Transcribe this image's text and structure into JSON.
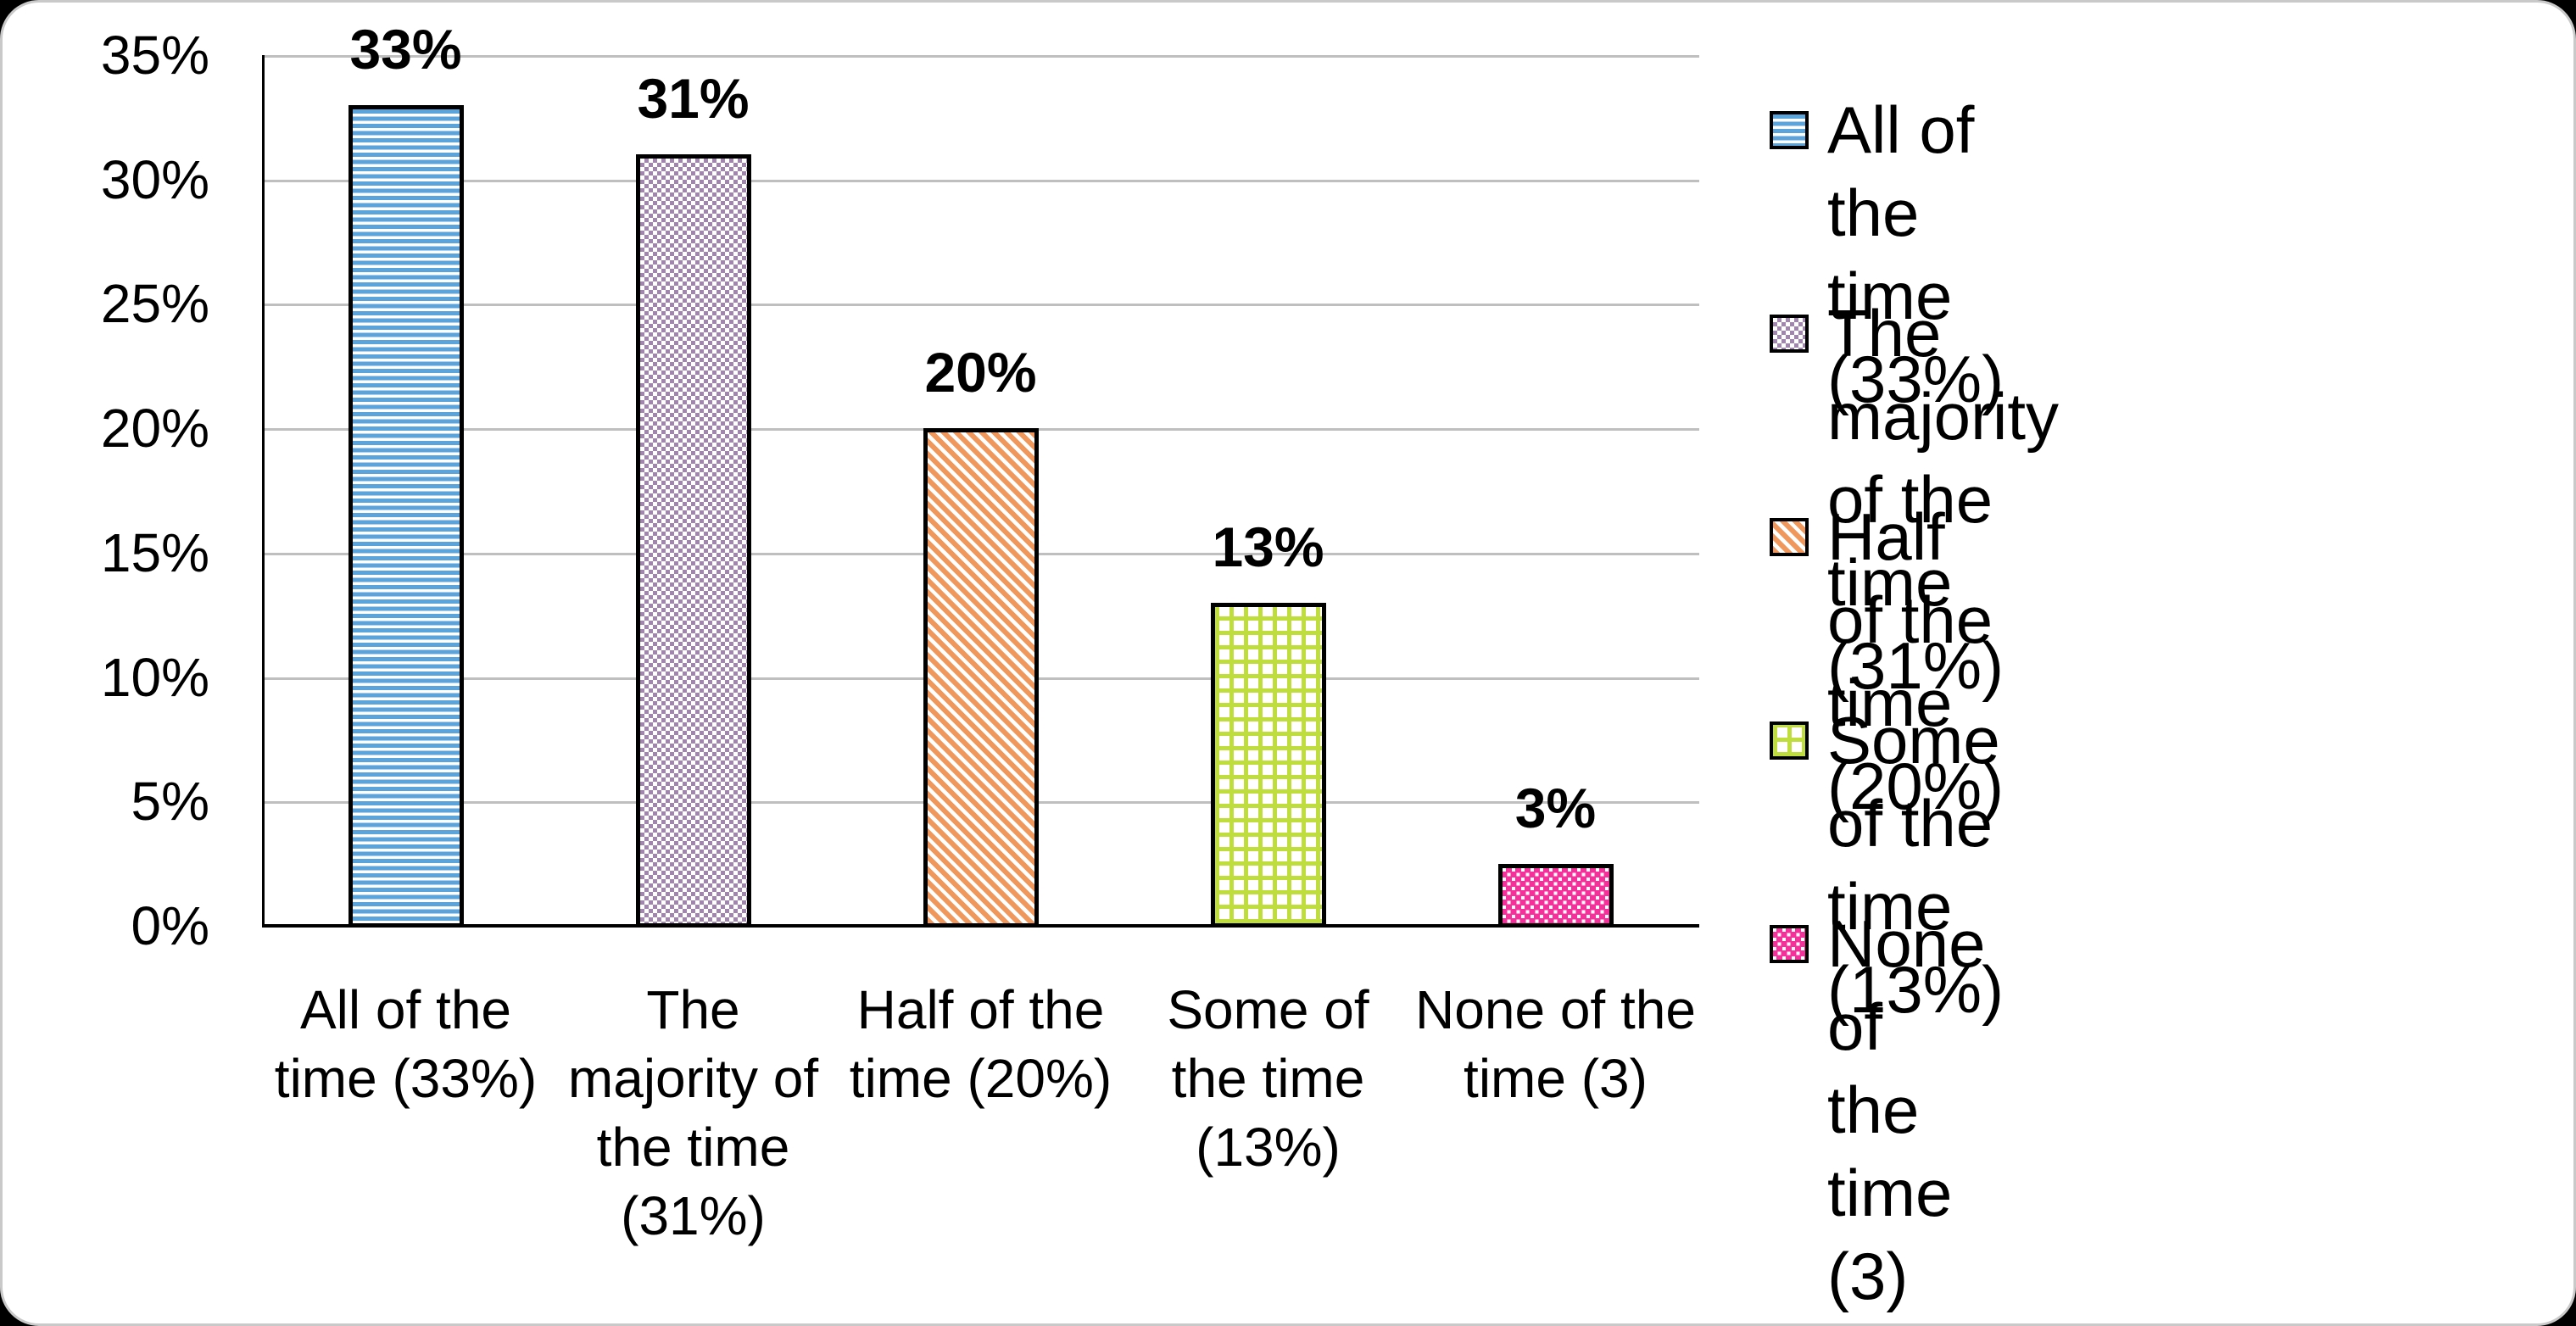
{
  "page": {
    "background_color": "#000000",
    "card_background_color": "#ffffff",
    "gridline_color": "#bfbfbf",
    "axis_color": "#000000"
  },
  "chart_data": {
    "type": "bar",
    "title": "",
    "xlabel": "",
    "ylabel": "",
    "ylim": [
      0,
      35
    ],
    "ytick_step": 5,
    "ytick_labels": [
      "0%",
      "5%",
      "10%",
      "15%",
      "20%",
      "25%",
      "30%",
      "35%"
    ],
    "grid": true,
    "legend_position": "right",
    "categories": [
      "All of the time (33%)",
      "The majority of the time (31%)",
      "Half of the time (20%)",
      "Some of the time (13%)",
      "None of the time (3)"
    ],
    "category_label_lines": [
      [
        "All of the",
        "time (33%)"
      ],
      [
        "The",
        "majority of",
        "the time",
        "(31%)"
      ],
      [
        "Half of the",
        "time (20%)"
      ],
      [
        "Some of",
        "the time",
        "(13%)"
      ],
      [
        "None of the",
        "time (3)"
      ]
    ],
    "values": [
      33,
      31,
      20,
      13,
      3
    ],
    "bar_display_heights": [
      33,
      31,
      20,
      13,
      2.5
    ],
    "bar_labels": [
      "33%",
      "31%",
      "20%",
      "13%",
      "3%"
    ],
    "series_styles": [
      {
        "name": "All of the time (33%)",
        "color": "#5BA3DB",
        "pattern": "horizontal-stripes"
      },
      {
        "name": "The majority of the time (31%)",
        "color": "#A285AE",
        "pattern": "dotted-squares"
      },
      {
        "name": "Half of the time (20%)",
        "color": "#F0985C",
        "pattern": "diagonal-stripes"
      },
      {
        "name": "Some of the time (13%)",
        "color": "#BFDD3C",
        "pattern": "grid"
      },
      {
        "name": "None of the time (3)",
        "color": "#F5309B",
        "pattern": "dots"
      }
    ],
    "legend_entries": [
      {
        "lines": [
          "All of the time (33%)"
        ],
        "pattern": "horizontal-stripes"
      },
      {
        "lines": [
          "The majority of the",
          "time (31%)"
        ],
        "pattern": "dotted-squares"
      },
      {
        "lines": [
          "Half of the time (20%)"
        ],
        "pattern": "diagonal-stripes"
      },
      {
        "lines": [
          "Some of the time",
          "(13%)"
        ],
        "pattern": "grid"
      },
      {
        "lines": [
          "None of the time (3)"
        ],
        "pattern": "dots"
      }
    ]
  }
}
